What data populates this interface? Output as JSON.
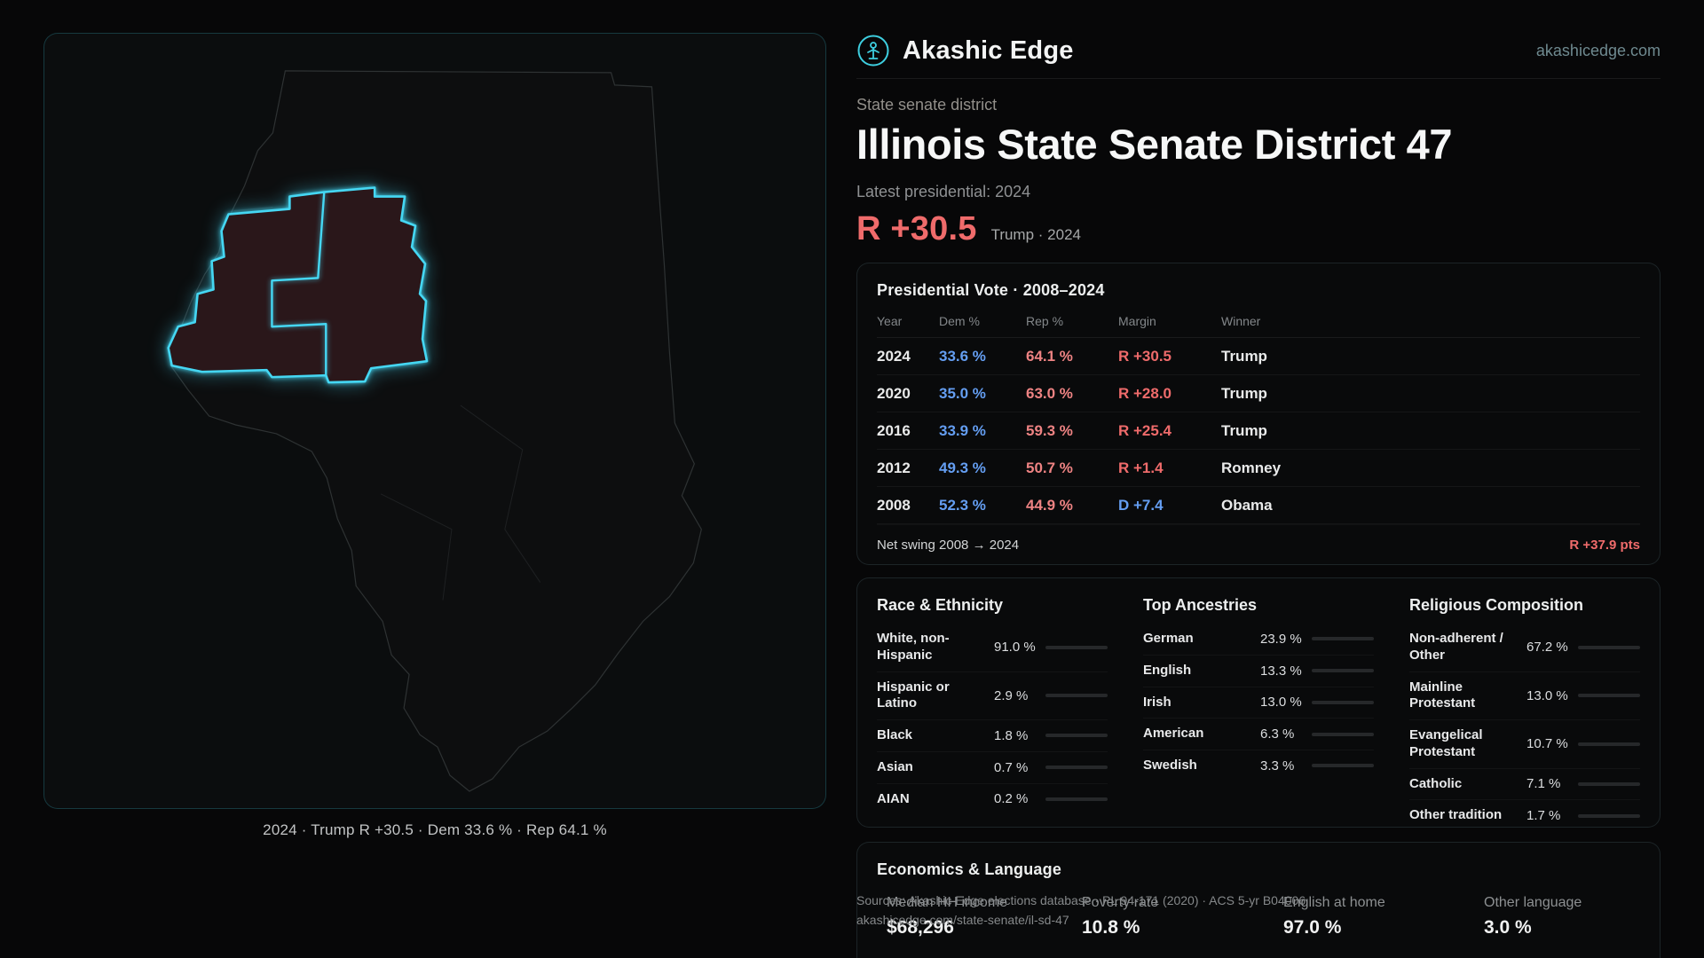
{
  "header": {
    "brand": "Akashic Edge",
    "domain": "akashicedge.com"
  },
  "hero": {
    "kicker": "State senate district",
    "title": "Illinois State Senate District 47",
    "latest_label": "Latest presidential: 2024",
    "margin": "R +30.5",
    "margin_note": "Trump · 2024"
  },
  "map": {
    "caption": "2024 · Trump R +30.5 · Dem 33.6 % · Rep 64.1 %",
    "district_color": "#45d7f3"
  },
  "vote_table": {
    "title": "Presidential Vote · 2008–2024",
    "columns": [
      "Year",
      "Dem %",
      "Rep %",
      "Margin",
      "Winner"
    ],
    "rows": [
      {
        "year": "2024",
        "dem": "33.6 %",
        "rep": "64.1 %",
        "margin": "R +30.5",
        "margin_color": "#ef6b6b",
        "winner": "Trump"
      },
      {
        "year": "2020",
        "dem": "35.0 %",
        "rep": "63.0 %",
        "margin": "R +28.0",
        "margin_color": "#ef6b6b",
        "winner": "Trump"
      },
      {
        "year": "2016",
        "dem": "33.9 %",
        "rep": "59.3 %",
        "margin": "R +25.4",
        "margin_color": "#ef6b6b",
        "winner": "Trump"
      },
      {
        "year": "2012",
        "dem": "49.3 %",
        "rep": "50.7 %",
        "margin": "R +1.4",
        "margin_color": "#ef6b6b",
        "winner": "Romney"
      },
      {
        "year": "2008",
        "dem": "52.3 %",
        "rep": "44.9 %",
        "margin": "D +7.4",
        "margin_color": "#649ef2",
        "winner": "Obama"
      }
    ],
    "net_swing_label": "Net swing 2008 → 2024",
    "net_swing_value": "R +37.9 pts"
  },
  "demographics": {
    "race": {
      "title": "Race & Ethnicity",
      "rows": [
        {
          "label": "White, non-Hispanic",
          "value": "91.0 %",
          "pct": 91.0,
          "color": "#c9cdd0"
        },
        {
          "label": "Hispanic or Latino",
          "value": "2.9 %",
          "pct": 2.9,
          "color": "#e6a23c"
        },
        {
          "label": "Black",
          "value": "1.8 %",
          "pct": 1.8,
          "color": "#6a8fe8"
        },
        {
          "label": "Asian",
          "value": "0.7 %",
          "pct": 0.7,
          "color": "#62b98a"
        },
        {
          "label": "AIAN",
          "value": "0.2 %",
          "pct": 0.2,
          "color": "#e0845a"
        }
      ]
    },
    "ancestries": {
      "title": "Top Ancestries",
      "rows": [
        {
          "label": "German",
          "value": "23.9 %",
          "pct": 23.9,
          "color": "#b9bdbf"
        },
        {
          "label": "English",
          "value": "13.3 %",
          "pct": 13.3,
          "color": "#b9bdbf"
        },
        {
          "label": "Irish",
          "value": "13.0 %",
          "pct": 13.0,
          "color": "#b9bdbf"
        },
        {
          "label": "American",
          "value": "6.3 %",
          "pct": 6.3,
          "color": "#b9bdbf"
        },
        {
          "label": "Swedish",
          "value": "3.3 %",
          "pct": 3.3,
          "color": "#b9bdbf"
        }
      ]
    },
    "religion": {
      "title": "Religious Composition",
      "rows": [
        {
          "label": "Non-adherent / Other",
          "value": "67.2 %",
          "pct": 67.2,
          "color": "#c9cdd0"
        },
        {
          "label": "Mainline Protestant",
          "value": "13.0 %",
          "pct": 13.0,
          "color": "#5b8ff0"
        },
        {
          "label": "Evangelical Protestant",
          "value": "10.7 %",
          "pct": 10.7,
          "color": "#e0635a"
        },
        {
          "label": "Catholic",
          "value": "7.1 %",
          "pct": 7.1,
          "color": "#e6c53c"
        },
        {
          "label": "Other tradition",
          "value": "1.7 %",
          "pct": 1.7,
          "color": "#9aa0a3"
        }
      ]
    }
  },
  "economics": {
    "title": "Economics & Language",
    "stats": [
      {
        "label": "Median HH income",
        "value": "$68,296"
      },
      {
        "label": "Poverty rate",
        "value": "10.8 %"
      },
      {
        "label": "English at home",
        "value": "97.0 %"
      },
      {
        "label": "Other language",
        "value": "3.0 %"
      }
    ]
  },
  "sources": {
    "line1": "Sources: Akashic Edge elections database · PL 94-171 (2020) · ACS 5-yr B04006",
    "line2": "akashicedge.com/state-senate/il-sd-47"
  }
}
